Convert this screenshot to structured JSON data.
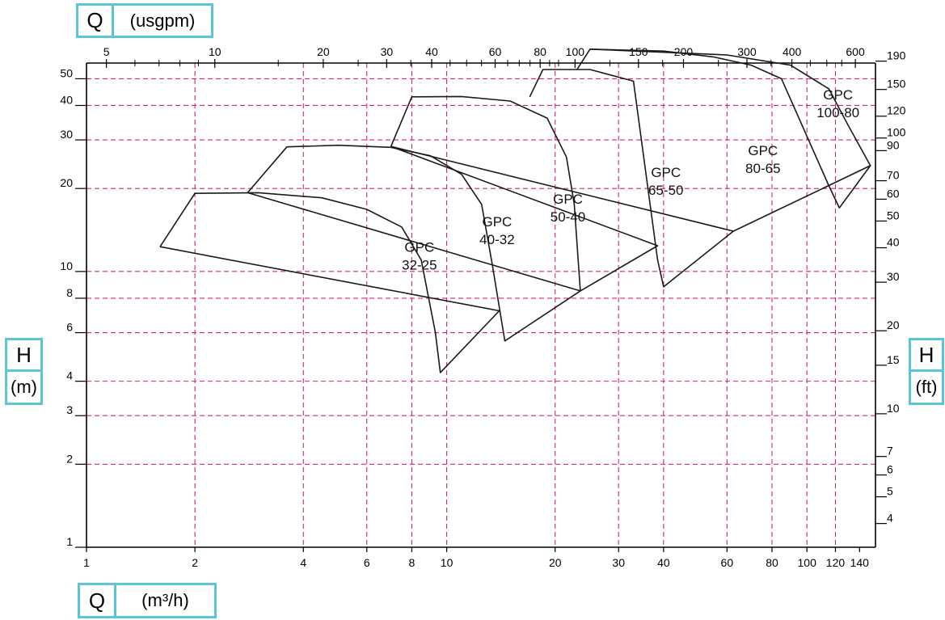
{
  "units": {
    "q_symbol": "Q",
    "q_top_unit": "(usgpm)",
    "q_bottom_unit": "(m³/h)",
    "h_symbol": "H",
    "h_left_unit": "(m)",
    "h_right_unit": "(ft)"
  },
  "colors": {
    "grid": "#d9217f",
    "curve": "#1a1a1a",
    "box_border": "#5bc4d6"
  },
  "chart_data": {
    "type": "line",
    "xscale": "log",
    "yscale": "log",
    "xlim": [
      1,
      155
    ],
    "ylim": [
      1,
      57
    ],
    "x_ticks": [
      "1",
      "2",
      "4",
      "6",
      "8",
      "10",
      "20",
      "30",
      "40",
      "60",
      "80",
      "100",
      "120",
      "140"
    ],
    "y_ticks": [
      "1",
      "2",
      "3",
      "4",
      "6",
      "8",
      "10",
      "20",
      "30",
      "40",
      "50"
    ],
    "top_ticks": [
      "5",
      "10",
      "20",
      "30",
      "40",
      "60",
      "80",
      "100",
      "150",
      "200",
      "300",
      "400",
      "600"
    ],
    "right_ticks": [
      "190",
      "150",
      "120",
      "100",
      "90",
      "70",
      "60",
      "50",
      "40",
      "30",
      "20",
      "15",
      "10",
      "7",
      "6",
      "5",
      "4"
    ],
    "grid_x": [
      2,
      4,
      6,
      8,
      10,
      20,
      30,
      40,
      60,
      80,
      100,
      120
    ],
    "grid_y": [
      2,
      3,
      4,
      6,
      8,
      10,
      20,
      30,
      40,
      50
    ],
    "series": [
      {
        "name": "GPC 32-25",
        "label_lines": [
          "GPC",
          "32-25"
        ],
        "label_at": [
          8.4,
          11.8
        ],
        "x": [
          1.6,
          2.0,
          3.0,
          4.5,
          6.0,
          7.5,
          8.5,
          9.3,
          9.6,
          14.0,
          1.6
        ],
        "y": [
          12.3,
          19.2,
          19.3,
          18.5,
          16.8,
          14.5,
          11.0,
          6.0,
          4.3,
          7.2,
          12.3
        ]
      },
      {
        "name": "GPC 40-32",
        "label_lines": [
          "GPC",
          "40-32"
        ],
        "label_at": [
          13.8,
          14.6
        ],
        "x": [
          2.8,
          3.6,
          5.0,
          7.0,
          9.0,
          11.0,
          12.5,
          13.4,
          14.5,
          23.5,
          2.8
        ],
        "y": [
          19.3,
          28.3,
          28.7,
          28.2,
          26.3,
          22.5,
          17.5,
          10.5,
          5.6,
          8.5,
          19.3
        ]
      },
      {
        "name": "GPC 50-40",
        "label_lines": [
          "GPC",
          "50-40"
        ],
        "label_at": [
          21.7,
          17.6
        ],
        "x": [
          7.0,
          8.0,
          11.0,
          15.0,
          19.0,
          21.5,
          22.6,
          23.5,
          38.5,
          7.0
        ],
        "y": [
          28.4,
          43.0,
          43.1,
          41.5,
          36.0,
          26.0,
          17.5,
          8.5,
          12.4,
          28.4
        ]
      },
      {
        "name": "GPC 65-50",
        "label_lines": [
          "GPC",
          "65-50"
        ],
        "label_at": [
          40.6,
          22.0
        ],
        "x": [
          17.0,
          18.5,
          25.0,
          33.0,
          38.5,
          40.0,
          62.5,
          7.0
        ],
        "y": [
          43.0,
          54.0,
          54.0,
          49.0,
          11.0,
          8.8,
          14.0,
          28.4
        ]
      },
      {
        "name": "GPC 80-65",
        "label_lines": [
          "GPC",
          "80-65"
        ],
        "label_at": [
          75.5,
          26.4
        ],
        "x": [
          23.0,
          25.0,
          40.0,
          55.0,
          70.0,
          85.0,
          115.0,
          123.0,
          150.0,
          62.5
        ],
        "y": [
          54.0,
          64.0,
          63.0,
          60.0,
          56.0,
          50.0,
          20.5,
          17.0,
          24.2,
          14.0
        ]
      },
      {
        "name": "GPC 100-80",
        "label_lines": [
          "GPC",
          "100-80"
        ],
        "label_at": [
          122.0,
          42.0
        ],
        "x": [
          25.0,
          60.0,
          90.0,
          115.0,
          130.0,
          150.0
        ],
        "y": [
          64.0,
          61.0,
          56.0,
          46.0,
          34.0,
          24.2
        ]
      }
    ]
  }
}
